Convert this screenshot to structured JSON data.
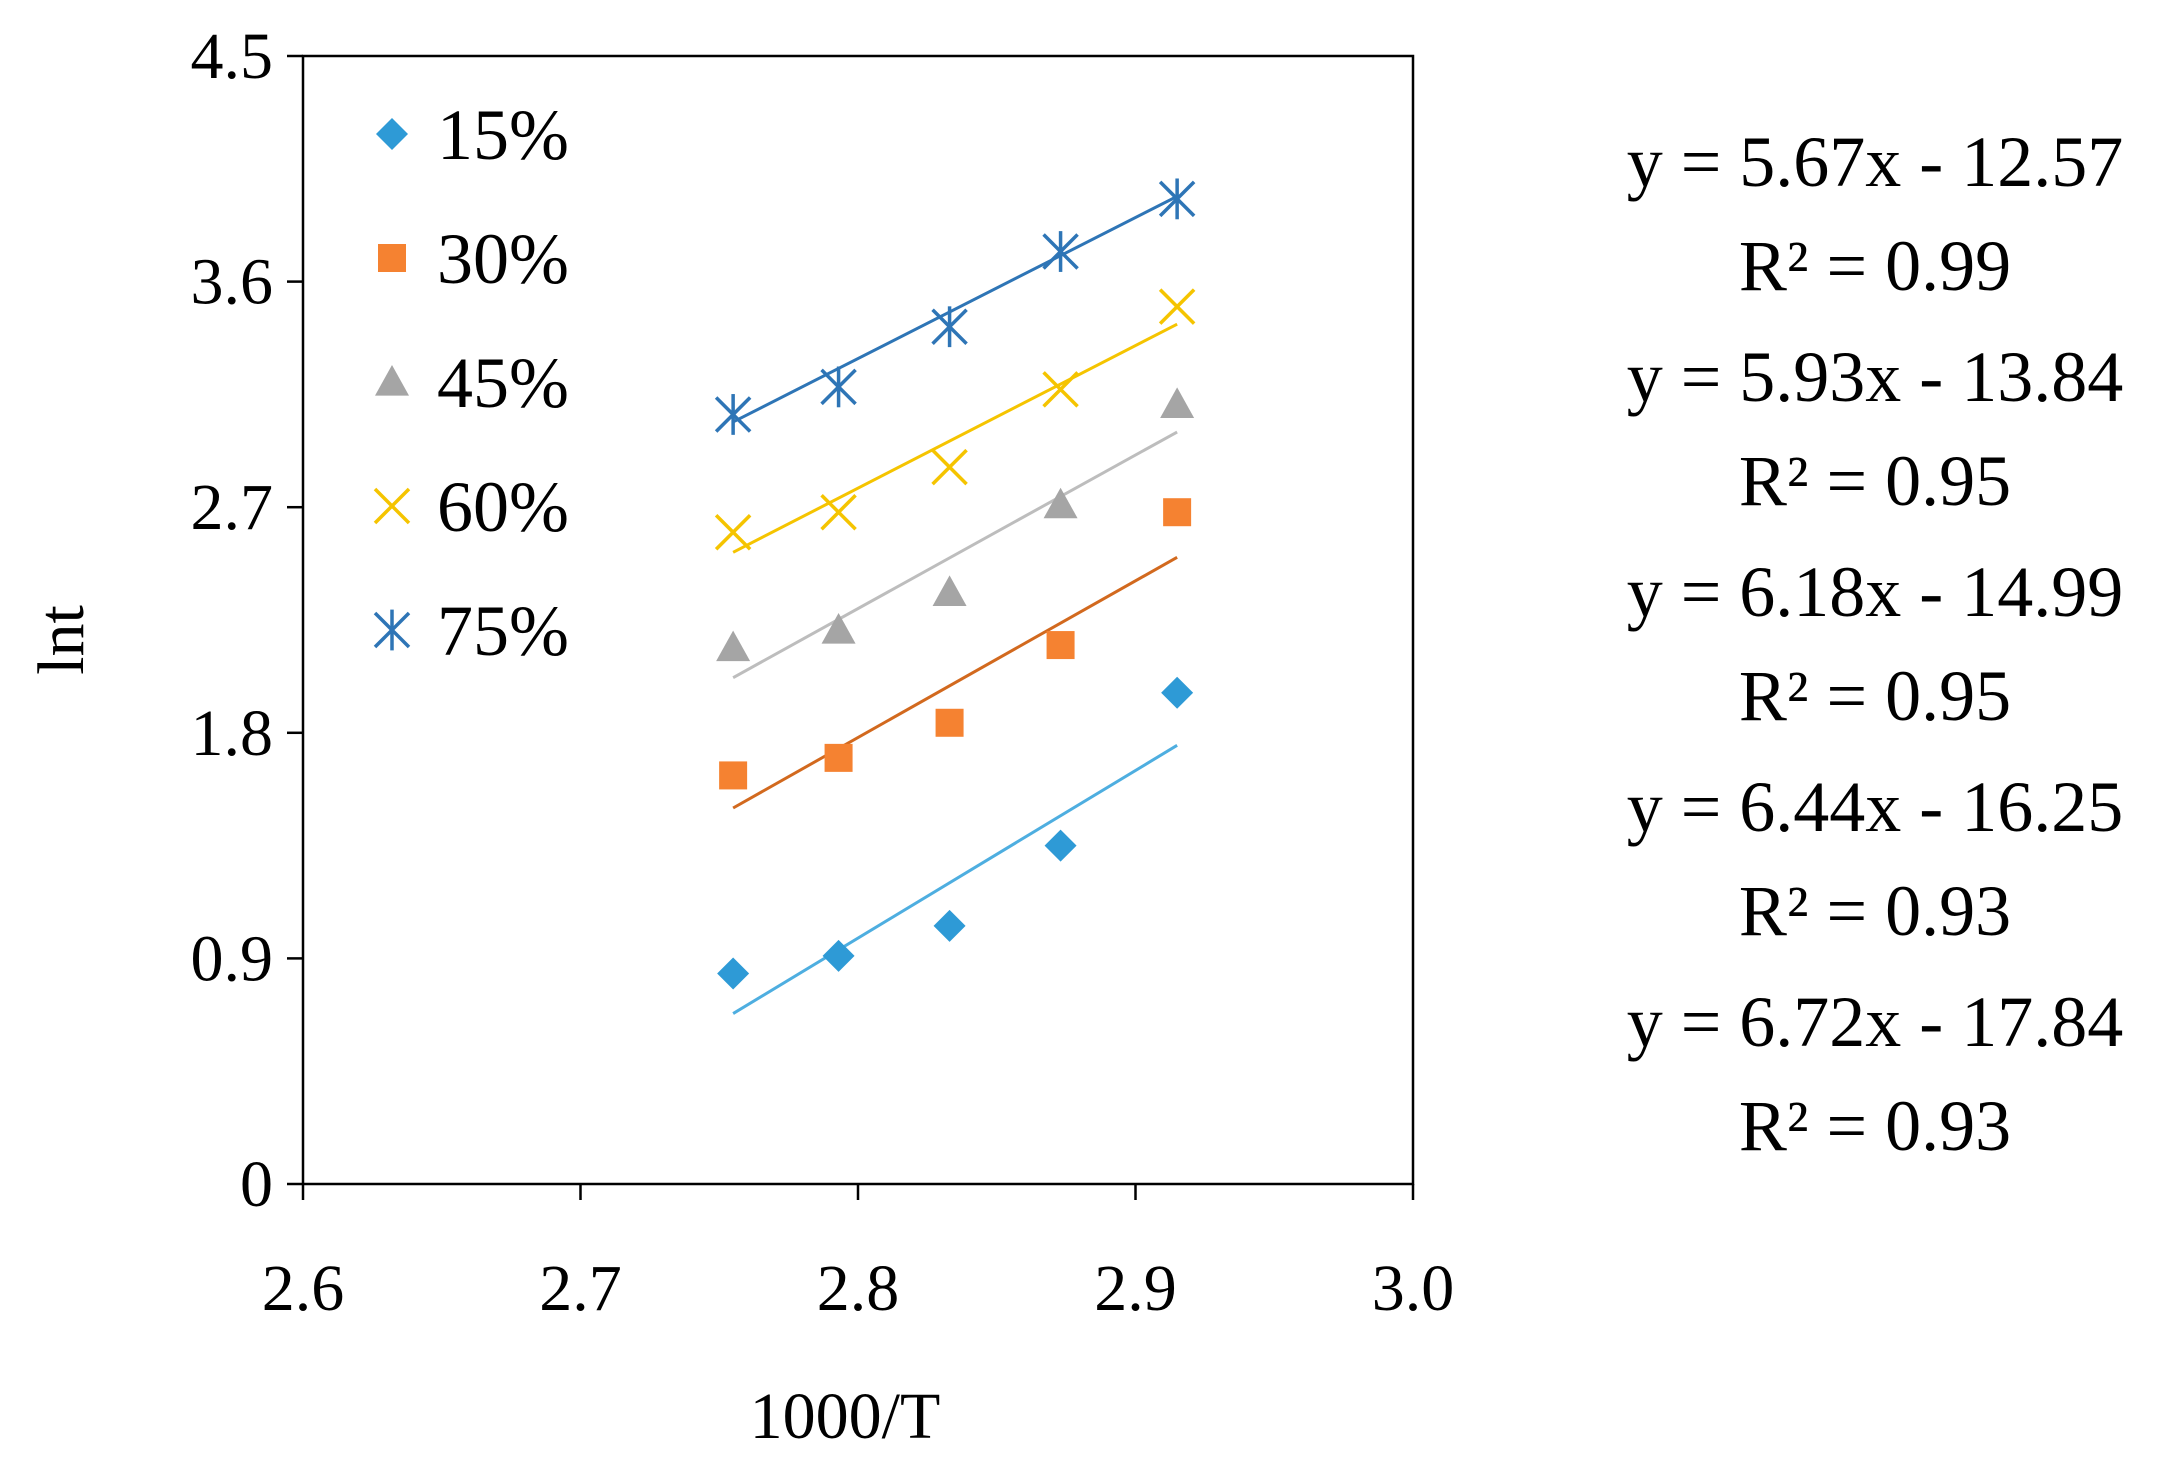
{
  "chart_data": {
    "type": "scatter",
    "title": "",
    "xlabel": "1000/T",
    "ylabel": "lnt",
    "xlim": [
      2.6,
      3.0
    ],
    "ylim": [
      0,
      4.5
    ],
    "x_ticks": [
      2.6,
      2.7,
      2.8,
      2.9,
      3.0
    ],
    "x_tick_labels": [
      "2.6",
      "2.7",
      "2.8",
      "2.9",
      "3.0"
    ],
    "y_ticks": [
      0,
      0.9,
      1.8,
      2.7,
      3.6,
      4.5
    ],
    "y_tick_labels": [
      "0",
      "0.9",
      "1.8",
      "2.7",
      "3.6",
      "4.5"
    ],
    "grid": false,
    "legend_position": "top-left",
    "series": [
      {
        "name": "15%",
        "marker": "diamond",
        "color": "#2E9AD6",
        "trend_color": "#4EAEE0",
        "x": [
          2.755,
          2.793,
          2.833,
          2.873,
          2.915
        ],
        "y": [
          0.84,
          0.91,
          1.03,
          1.35,
          1.96
        ],
        "trendline": {
          "x": [
            2.755,
            2.915
          ],
          "y": [
            0.68,
            1.75
          ]
        },
        "equation": "y = 5.67x - 12.57",
        "r2": "R² = 0.99"
      },
      {
        "name": "30%",
        "marker": "square",
        "color": "#F58231",
        "trend_color": "#D2691E",
        "x": [
          2.755,
          2.793,
          2.833,
          2.873,
          2.915
        ],
        "y": [
          1.63,
          1.7,
          1.84,
          2.15,
          2.68
        ],
        "trendline": {
          "x": [
            2.755,
            2.915
          ],
          "y": [
            1.5,
            2.5
          ]
        },
        "equation": "y = 5.93x - 13.84",
        "r2": "R² = 0.95"
      },
      {
        "name": "45%",
        "marker": "triangle",
        "color": "#A5A5A5",
        "trend_color": "#BDBDBD",
        "x": [
          2.755,
          2.793,
          2.833,
          2.873,
          2.915
        ],
        "y": [
          2.14,
          2.21,
          2.36,
          2.71,
          3.11
        ],
        "trendline": {
          "x": [
            2.755,
            2.915
          ],
          "y": [
            2.02,
            3.0
          ]
        },
        "equation": "y = 6.18x - 14.99",
        "r2": "R² = 0.95"
      },
      {
        "name": "60%",
        "marker": "x",
        "color": "#F5C400",
        "trend_color": "#F5C400",
        "x": [
          2.755,
          2.793,
          2.833,
          2.873,
          2.915
        ],
        "y": [
          2.6,
          2.68,
          2.86,
          3.17,
          3.5
        ],
        "trendline": {
          "x": [
            2.755,
            2.915
          ],
          "y": [
            2.52,
            3.43
          ]
        },
        "equation": "y = 6.44x - 16.25",
        "r2": "R² = 0.93"
      },
      {
        "name": "75%",
        "marker": "star",
        "color": "#2E75B6",
        "trend_color": "#2E75B6",
        "x": [
          2.755,
          2.793,
          2.833,
          2.873,
          2.915
        ],
        "y": [
          3.07,
          3.18,
          3.42,
          3.72,
          3.93
        ],
        "trendline": {
          "x": [
            2.755,
            2.915
          ],
          "y": [
            3.04,
            3.94
          ]
        },
        "equation": "y = 6.72x - 17.84",
        "r2": "R² = 0.93"
      }
    ]
  }
}
